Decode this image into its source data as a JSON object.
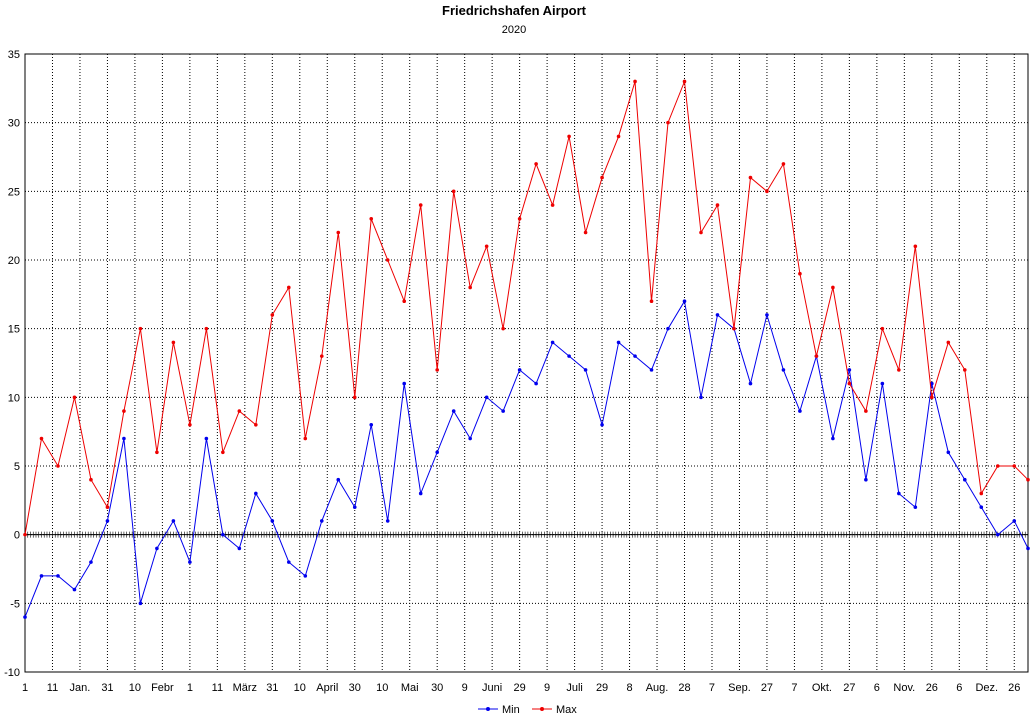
{
  "chart_data": {
    "type": "line",
    "title": "Friedrichshafen Airport",
    "subtitle": "2020",
    "xlabel": "",
    "ylabel": "",
    "ylim": [
      -10,
      35
    ],
    "yticks": [
      -10,
      -5,
      0,
      5,
      10,
      15,
      20,
      25,
      30,
      35
    ],
    "xlim": [
      1,
      366
    ],
    "grid": true,
    "legend": "bottom-center",
    "x_ticks": [
      {
        "day": 1,
        "label": "1"
      },
      {
        "day": 11,
        "label": "11"
      },
      {
        "day": 21,
        "label": "Jan."
      },
      {
        "day": 31,
        "label": "31"
      },
      {
        "day": 41,
        "label": "10"
      },
      {
        "day": 51,
        "label": "Febr"
      },
      {
        "day": 61,
        "label": "1"
      },
      {
        "day": 71,
        "label": "11"
      },
      {
        "day": 81,
        "label": "März"
      },
      {
        "day": 91,
        "label": "31"
      },
      {
        "day": 101,
        "label": "10"
      },
      {
        "day": 111,
        "label": "April"
      },
      {
        "day": 121,
        "label": "30"
      },
      {
        "day": 131,
        "label": "10"
      },
      {
        "day": 141,
        "label": "Mai"
      },
      {
        "day": 151,
        "label": "30"
      },
      {
        "day": 161,
        "label": "9"
      },
      {
        "day": 171,
        "label": "Juni"
      },
      {
        "day": 181,
        "label": "29"
      },
      {
        "day": 191,
        "label": "9"
      },
      {
        "day": 201,
        "label": "Juli"
      },
      {
        "day": 211,
        "label": "29"
      },
      {
        "day": 221,
        "label": "8"
      },
      {
        "day": 231,
        "label": "Aug."
      },
      {
        "day": 241,
        "label": "28"
      },
      {
        "day": 251,
        "label": "7"
      },
      {
        "day": 261,
        "label": "Sep."
      },
      {
        "day": 271,
        "label": "27"
      },
      {
        "day": 281,
        "label": "7"
      },
      {
        "day": 291,
        "label": "Okt."
      },
      {
        "day": 301,
        "label": "27"
      },
      {
        "day": 311,
        "label": "6"
      },
      {
        "day": 321,
        "label": "Nov."
      },
      {
        "day": 331,
        "label": "26"
      },
      {
        "day": 341,
        "label": "6"
      },
      {
        "day": 351,
        "label": "Dez."
      },
      {
        "day": 361,
        "label": "26"
      }
    ],
    "series": [
      {
        "name": "Min",
        "color": "#0000ee",
        "x": [
          1,
          7,
          13,
          19,
          25,
          31,
          37,
          43,
          49,
          55,
          61,
          67,
          73,
          79,
          85,
          91,
          97,
          103,
          109,
          115,
          121,
          127,
          133,
          139,
          145,
          151,
          157,
          163,
          169,
          175,
          181,
          187,
          193,
          199,
          205,
          211,
          217,
          223,
          229,
          235,
          241,
          247,
          253,
          259,
          265,
          271,
          277,
          283,
          289,
          295,
          301,
          307,
          313,
          319,
          325,
          331,
          337,
          343,
          349,
          355,
          361,
          366
        ],
        "values": [
          -6,
          -3,
          -3,
          -4,
          -2,
          1,
          7,
          -5,
          -1,
          1,
          -2,
          7,
          0,
          -1,
          3,
          1,
          -2,
          -3,
          1,
          4,
          2,
          8,
          1,
          11,
          3,
          6,
          9,
          7,
          10,
          9,
          12,
          11,
          14,
          13,
          12,
          8,
          14,
          13,
          12,
          15,
          17,
          10,
          16,
          15,
          11,
          16,
          12,
          9,
          13,
          7,
          12,
          4,
          11,
          3,
          2,
          11,
          6,
          4,
          2,
          0,
          1,
          -1
        ]
      },
      {
        "name": "Max",
        "color": "#ee0000",
        "x": [
          1,
          7,
          13,
          19,
          25,
          31,
          37,
          43,
          49,
          55,
          61,
          67,
          73,
          79,
          85,
          91,
          97,
          103,
          109,
          115,
          121,
          127,
          133,
          139,
          145,
          151,
          157,
          163,
          169,
          175,
          181,
          187,
          193,
          199,
          205,
          211,
          217,
          223,
          229,
          235,
          241,
          247,
          253,
          259,
          265,
          271,
          277,
          283,
          289,
          295,
          301,
          307,
          313,
          319,
          325,
          331,
          337,
          343,
          349,
          355,
          361,
          366
        ],
        "values": [
          0,
          7,
          5,
          10,
          4,
          2,
          9,
          15,
          6,
          14,
          8,
          15,
          6,
          9,
          8,
          16,
          18,
          7,
          13,
          22,
          10,
          23,
          20,
          17,
          24,
          12,
          25,
          18,
          21,
          15,
          23,
          27,
          24,
          29,
          22,
          26,
          29,
          33,
          17,
          30,
          33,
          22,
          24,
          15,
          26,
          25,
          27,
          19,
          13,
          18,
          11,
          9,
          15,
          12,
          21,
          10,
          14,
          12,
          3,
          5,
          5,
          4
        ]
      }
    ]
  }
}
